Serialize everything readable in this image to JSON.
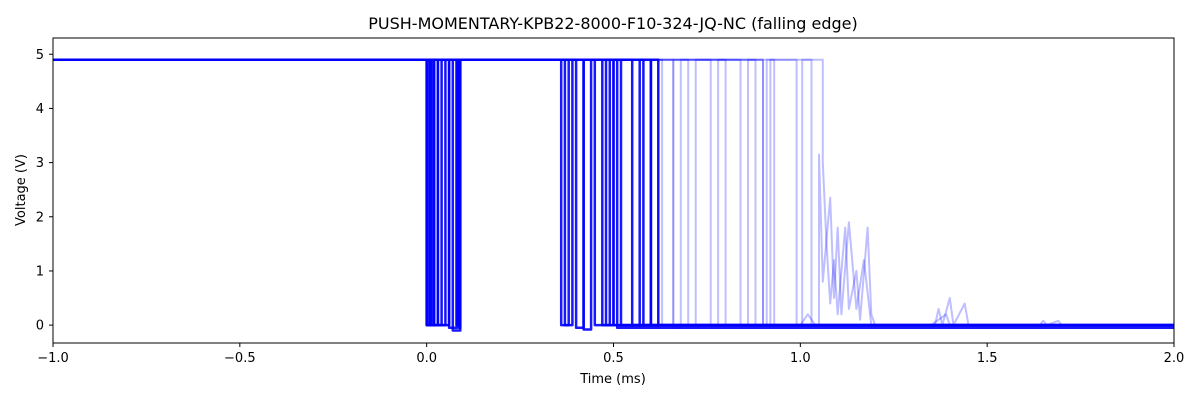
{
  "chart_data": {
    "type": "line",
    "title": "PUSH-MOMENTARY-KPB22-8000-F10-324-JQ-NC (falling edge)",
    "xlabel": "Time (ms)",
    "ylabel": "Voltage (V)",
    "xlim": [
      -1.0,
      2.0
    ],
    "ylim": [
      -0.33,
      5.3
    ],
    "xticks": [
      -1.0,
      -0.5,
      0.0,
      0.5,
      1.0,
      1.5,
      2.0
    ],
    "xtick_labels": [
      "−1.0",
      "−0.5",
      "0.0",
      "0.5",
      "1.0",
      "1.5",
      "2.0"
    ],
    "yticks": [
      0,
      1,
      2,
      3,
      4,
      5
    ],
    "ytick_labels": [
      "0",
      "1",
      "2",
      "3",
      "4",
      "5"
    ],
    "grid": false,
    "legend": "none",
    "color": "#0000ff",
    "series": [
      {
        "values": [
          [
            -1.0,
            4.9
          ],
          [
            0.0,
            4.9
          ],
          [
            0.0,
            0.0
          ],
          [
            0.015,
            0.0
          ],
          [
            0.015,
            4.9
          ],
          [
            0.03,
            4.9
          ],
          [
            0.03,
            0.0
          ],
          [
            0.05,
            0.0
          ],
          [
            0.05,
            4.9
          ],
          [
            0.37,
            4.9
          ],
          [
            0.37,
            0.0
          ],
          [
            0.39,
            0.0
          ],
          [
            0.39,
            4.9
          ],
          [
            0.45,
            4.9
          ],
          [
            0.45,
            0.0
          ],
          [
            2.0,
            0.0
          ]
        ]
      },
      {
        "values": [
          [
            -1.0,
            4.9
          ],
          [
            0.005,
            4.9
          ],
          [
            0.005,
            0.0
          ],
          [
            0.02,
            0.0
          ],
          [
            0.02,
            4.9
          ],
          [
            0.06,
            4.9
          ],
          [
            0.06,
            -0.05
          ],
          [
            0.08,
            -0.05
          ],
          [
            0.08,
            4.9
          ],
          [
            0.4,
            4.9
          ],
          [
            0.4,
            -0.05
          ],
          [
            0.42,
            -0.05
          ],
          [
            0.42,
            4.9
          ],
          [
            0.5,
            4.9
          ],
          [
            0.5,
            0.0
          ],
          [
            2.0,
            0.0
          ]
        ]
      },
      {
        "values": [
          [
            -1.0,
            4.9
          ],
          [
            0.0,
            4.9
          ],
          [
            0.0,
            0.0
          ],
          [
            0.01,
            0.0
          ],
          [
            0.01,
            4.9
          ],
          [
            0.07,
            4.9
          ],
          [
            0.07,
            -0.1
          ],
          [
            0.09,
            -0.1
          ],
          [
            0.09,
            4.9
          ],
          [
            0.36,
            4.9
          ],
          [
            0.36,
            0.0
          ],
          [
            0.38,
            0.0
          ],
          [
            0.38,
            4.9
          ],
          [
            0.55,
            4.9
          ],
          [
            0.55,
            0.0
          ],
          [
            0.57,
            0.0
          ],
          [
            0.57,
            4.9
          ],
          [
            0.6,
            4.9
          ],
          [
            0.6,
            0.0
          ],
          [
            2.0,
            0.0
          ]
        ]
      },
      {
        "values": [
          [
            -1.0,
            4.9
          ],
          [
            0.02,
            4.9
          ],
          [
            0.02,
            0.0
          ],
          [
            0.04,
            0.0
          ],
          [
            0.04,
            4.9
          ],
          [
            0.085,
            4.9
          ],
          [
            0.085,
            -0.05
          ],
          [
            0.09,
            -0.05
          ],
          [
            0.09,
            4.9
          ],
          [
            0.48,
            4.9
          ],
          [
            0.48,
            0.0
          ],
          [
            0.5,
            0.0
          ],
          [
            0.5,
            4.9
          ],
          [
            0.52,
            4.9
          ],
          [
            0.52,
            0.0
          ],
          [
            2.0,
            0.0
          ]
        ]
      },
      {
        "values": [
          [
            -1.0,
            4.9
          ],
          [
            0.0,
            4.9
          ],
          [
            0.0,
            0.0
          ],
          [
            0.03,
            0.0
          ],
          [
            0.03,
            4.9
          ],
          [
            0.42,
            4.9
          ],
          [
            0.42,
            -0.08
          ],
          [
            0.44,
            -0.08
          ],
          [
            0.44,
            4.9
          ],
          [
            0.58,
            4.9
          ],
          [
            0.58,
            0.0
          ],
          [
            0.6,
            0.0
          ],
          [
            0.6,
            4.9
          ],
          [
            0.62,
            4.9
          ],
          [
            0.62,
            0.0
          ],
          [
            2.0,
            0.0
          ]
        ]
      },
      {
        "values": [
          [
            -1.0,
            4.9
          ],
          [
            0.01,
            4.9
          ],
          [
            0.01,
            0.0
          ],
          [
            0.06,
            0.0
          ],
          [
            0.06,
            4.9
          ],
          [
            0.08,
            4.9
          ],
          [
            0.08,
            0.0
          ],
          [
            0.085,
            0.0
          ],
          [
            0.085,
            4.9
          ],
          [
            0.47,
            4.9
          ],
          [
            0.47,
            0.0
          ],
          [
            0.49,
            0.0
          ],
          [
            0.49,
            4.9
          ],
          [
            0.51,
            4.9
          ],
          [
            0.51,
            -0.05
          ],
          [
            2.0,
            -0.05
          ]
        ]
      }
    ],
    "faint_series": [
      {
        "values": [
          [
            -1.0,
            4.9
          ],
          [
            0.0,
            4.9
          ],
          [
            0.0,
            0.0
          ],
          [
            0.03,
            0.0
          ],
          [
            0.03,
            4.9
          ],
          [
            0.6,
            4.9
          ],
          [
            0.6,
            0.0
          ],
          [
            0.62,
            0.0
          ],
          [
            0.62,
            4.9
          ],
          [
            0.66,
            4.9
          ],
          [
            0.66,
            -0.05
          ],
          [
            0.68,
            -0.05
          ],
          [
            0.68,
            4.9
          ],
          [
            0.76,
            4.9
          ],
          [
            0.76,
            0.0
          ],
          [
            0.78,
            0.0
          ],
          [
            0.78,
            4.9
          ],
          [
            0.8,
            4.9
          ],
          [
            0.8,
            0.0
          ],
          [
            2.0,
            0.0
          ]
        ]
      },
      {
        "values": [
          [
            -1.0,
            4.9
          ],
          [
            0.0,
            4.9
          ],
          [
            0.0,
            0.0
          ],
          [
            0.05,
            0.0
          ],
          [
            0.05,
            4.9
          ],
          [
            0.63,
            4.9
          ],
          [
            0.63,
            0.0
          ],
          [
            0.66,
            0.0
          ],
          [
            0.66,
            4.9
          ],
          [
            0.84,
            4.9
          ],
          [
            0.84,
            0.0
          ],
          [
            0.86,
            0.0
          ],
          [
            0.86,
            4.9
          ],
          [
            0.9,
            4.9
          ],
          [
            0.9,
            0.0
          ],
          [
            2.0,
            0.0
          ]
        ]
      },
      {
        "values": [
          [
            -1.0,
            4.9
          ],
          [
            0.0,
            4.9
          ],
          [
            0.0,
            0.0
          ],
          [
            0.04,
            0.0
          ],
          [
            0.04,
            4.9
          ],
          [
            0.7,
            4.9
          ],
          [
            0.7,
            0.0
          ],
          [
            0.72,
            0.0
          ],
          [
            0.72,
            4.9
          ],
          [
            0.88,
            4.9
          ],
          [
            0.88,
            0.0
          ],
          [
            0.91,
            0.0
          ],
          [
            0.91,
            4.9
          ],
          [
            0.93,
            4.9
          ],
          [
            0.93,
            0.0
          ],
          [
            2.0,
            0.0
          ]
        ]
      },
      {
        "values": [
          [
            -1.0,
            4.9
          ],
          [
            0.0,
            4.9
          ],
          [
            0.0,
            0.0
          ],
          [
            0.02,
            0.0
          ],
          [
            0.02,
            4.9
          ],
          [
            0.99,
            4.9
          ],
          [
            0.99,
            0.0
          ],
          [
            1.005,
            0.0
          ],
          [
            1.005,
            4.9
          ],
          [
            1.06,
            4.9
          ],
          [
            1.06,
            3.0
          ],
          [
            1.07,
            1.5
          ],
          [
            1.08,
            0.4
          ],
          [
            1.09,
            1.2
          ],
          [
            1.1,
            0.2
          ],
          [
            1.12,
            1.8
          ],
          [
            1.13,
            0.3
          ],
          [
            1.15,
            1.0
          ],
          [
            1.16,
            0.1
          ],
          [
            1.18,
            1.8
          ],
          [
            1.19,
            0.2
          ],
          [
            1.2,
            0.0
          ],
          [
            2.0,
            0.0
          ]
        ]
      },
      {
        "values": [
          [
            -1.0,
            4.9
          ],
          [
            0.0,
            4.9
          ],
          [
            0.0,
            0.0
          ],
          [
            0.02,
            0.0
          ],
          [
            0.02,
            4.9
          ],
          [
            0.9,
            4.9
          ],
          [
            0.9,
            0.0
          ],
          [
            0.92,
            0.0
          ],
          [
            0.92,
            4.9
          ],
          [
            1.03,
            4.9
          ],
          [
            1.03,
            0.0
          ],
          [
            1.05,
            0.0
          ],
          [
            1.05,
            3.15
          ],
          [
            1.06,
            0.8
          ],
          [
            1.08,
            2.35
          ],
          [
            1.09,
            0.5
          ],
          [
            1.1,
            1.8
          ],
          [
            1.11,
            0.2
          ],
          [
            1.13,
            1.9
          ],
          [
            1.15,
            0.3
          ],
          [
            1.17,
            1.2
          ],
          [
            1.19,
            0.0
          ],
          [
            1.36,
            0.0
          ],
          [
            1.37,
            0.3
          ],
          [
            1.38,
            0.0
          ],
          [
            1.4,
            0.5
          ],
          [
            1.41,
            0.0
          ],
          [
            1.44,
            0.4
          ],
          [
            1.45,
            0.0
          ],
          [
            2.0,
            0.0
          ]
        ]
      },
      {
        "values": [
          [
            -1.0,
            4.9
          ],
          [
            0.0,
            4.9
          ],
          [
            0.0,
            0.0
          ],
          [
            0.06,
            0.0
          ],
          [
            0.06,
            4.9
          ],
          [
            0.58,
            4.9
          ],
          [
            0.58,
            0.0
          ],
          [
            0.6,
            0.0
          ],
          [
            0.6,
            4.9
          ],
          [
            0.62,
            4.9
          ],
          [
            0.62,
            0.0
          ],
          [
            1.0,
            0.0
          ],
          [
            1.02,
            0.2
          ],
          [
            1.04,
            0.0
          ],
          [
            1.2,
            0.0
          ],
          [
            1.35,
            0.0
          ],
          [
            1.39,
            0.2
          ],
          [
            1.4,
            0.0
          ],
          [
            1.64,
            0.0
          ],
          [
            1.65,
            0.08
          ],
          [
            1.66,
            0.0
          ],
          [
            1.69,
            0.08
          ],
          [
            1.7,
            0.0
          ],
          [
            2.0,
            0.0
          ]
        ]
      }
    ]
  }
}
